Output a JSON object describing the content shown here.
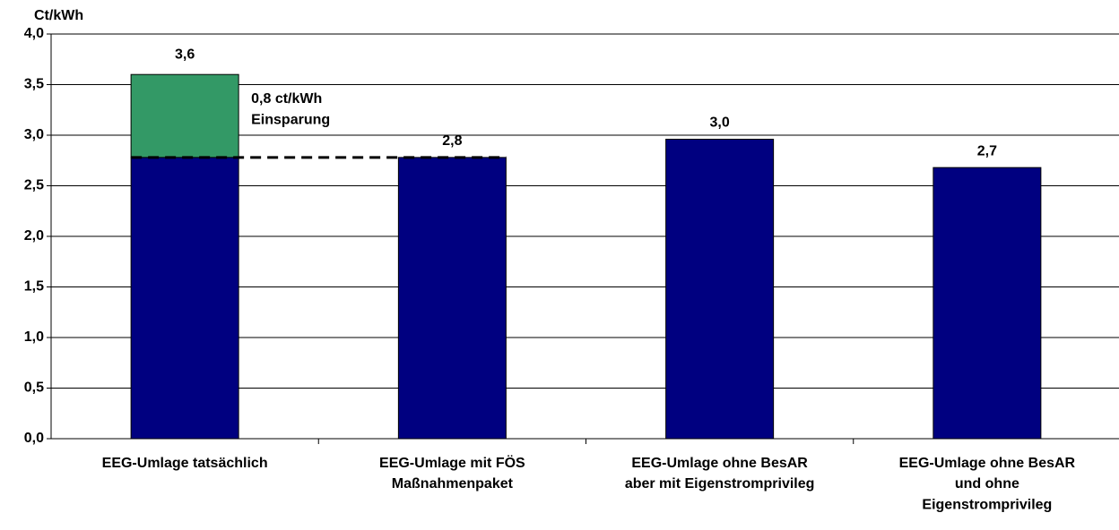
{
  "chart_data": {
    "type": "stacked_bar",
    "y_label": "Ct/kWh",
    "categories": [
      "EEG-Umlage tatsächlich",
      "EEG-Umlage mit FÖS\nMaßnahmenpaket",
      "EEG-Umlage ohne BesAR\naber mit Eigenstromprivileg",
      "EEG-Umlage ohne BesAR\nund ohne\nEigenstromprivileg"
    ],
    "series": [
      {
        "color": "#000080",
        "values": [
          2.78,
          2.78,
          2.96,
          2.68
        ],
        "value_labels": [
          null,
          "2,8",
          "3,0",
          "2,7"
        ]
      },
      {
        "color": "#339966",
        "values": [
          0.82,
          null,
          null,
          null
        ]
      }
    ],
    "total_label": {
      "value": 3.6,
      "label": "3,6"
    },
    "annotation": "0,8 ct/kWh\nEinsparung",
    "ylim": [
      0,
      4
    ],
    "yticks": [
      {
        "value": 0,
        "label": "0,0"
      },
      {
        "value": 0.5,
        "label": "0,5"
      },
      {
        "value": 1,
        "label": "1,0"
      },
      {
        "value": 1.5,
        "label": "1,5"
      },
      {
        "value": 2,
        "label": "2,0"
      },
      {
        "value": 2.5,
        "label": "2,5"
      },
      {
        "value": 3,
        "label": "3,0"
      },
      {
        "value": 3.5,
        "label": "3,5"
      },
      {
        "value": 4,
        "label": "4,0"
      }
    ],
    "grid": true
  }
}
